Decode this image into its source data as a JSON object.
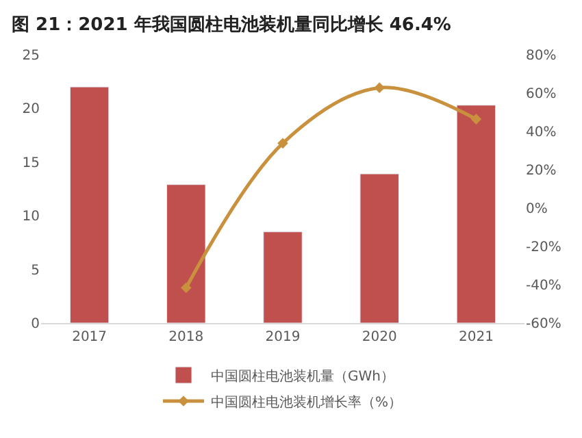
{
  "chart_data": {
    "type": "bar",
    "title": "图 21：2021 年我国圆柱电池装机量同比增长 46.4%",
    "categories": [
      "2017",
      "2018",
      "2019",
      "2020",
      "2021"
    ],
    "series": [
      {
        "name": "中国圆柱电池装机量（GWh）",
        "color": "#c0504d",
        "values": [
          22.0,
          12.9,
          8.5,
          13.9,
          20.3
        ]
      },
      {
        "name": "中国圆柱电池装机增长率（%）",
        "color": "#c9913d",
        "type": "line",
        "axis": "y2",
        "marker": "diamond",
        "values": [
          null,
          -41.6,
          33.8,
          62.8,
          46.4
        ]
      }
    ],
    "ylim": [
      0,
      25
    ],
    "yticks": [
      0,
      5,
      10,
      15,
      20,
      25
    ],
    "y2lim": [
      -60,
      80
    ],
    "y2ticks": [
      {
        "value": -60,
        "label": "-60%"
      },
      {
        "value": -40,
        "label": "-40%"
      },
      {
        "value": -20,
        "label": "-20%"
      },
      {
        "value": 0,
        "label": "0%"
      },
      {
        "value": 20,
        "label": "20%"
      },
      {
        "value": 40,
        "label": "40%"
      },
      {
        "value": 60,
        "label": "60%"
      },
      {
        "value": 80,
        "label": "80%"
      }
    ],
    "legend": "bottom"
  }
}
